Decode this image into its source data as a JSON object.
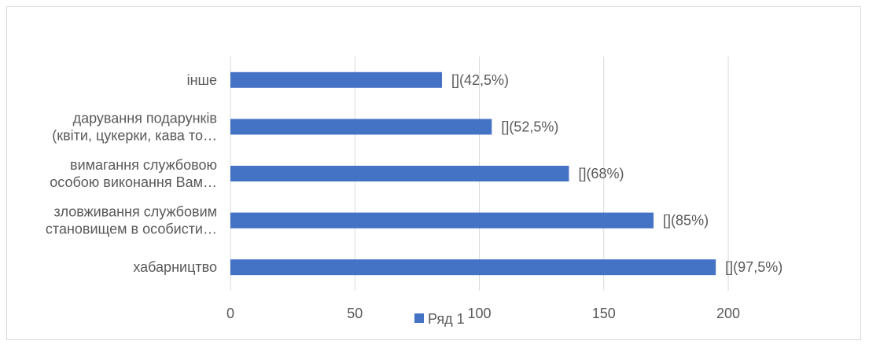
{
  "chart_data": {
    "type": "bar",
    "orientation": "horizontal",
    "categories": [
      [
        "інше"
      ],
      [
        "дарування подарунків",
        "(квіти, цукерки, кава то…"
      ],
      [
        "вимагання службовою",
        "особою виконання Вам…"
      ],
      [
        "зловживання службовим",
        "становищем в особисти…"
      ],
      [
        "хабарництво"
      ]
    ],
    "series": [
      {
        "name": "Ряд 1",
        "values": [
          85,
          105,
          136,
          170,
          195
        ],
        "color": "#4472c4"
      }
    ],
    "data_labels": [
      "[](42,5%)",
      "[](52,5%)",
      "[](68%)",
      "[](85%)",
      "[](97,5%)"
    ],
    "x_ticks": [
      "0",
      "50",
      "100",
      "150",
      "200"
    ],
    "xlim": [
      0,
      200
    ],
    "grid": "vertical",
    "legend_position": "bottom-center"
  }
}
